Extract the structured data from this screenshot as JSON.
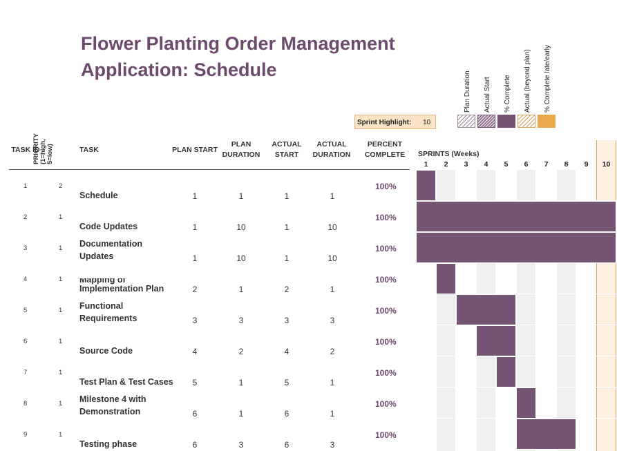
{
  "title": "Flower Planting Order Management Application: Schedule",
  "legend": {
    "items": [
      {
        "label": "Plan Duration"
      },
      {
        "label": "Actual Start"
      },
      {
        "label": "% Complete"
      },
      {
        "label": "Actual (beyond plan)"
      },
      {
        "label": "% Complete late/early"
      }
    ],
    "sprint_highlight_label": "Sprint Highlight:",
    "sprint_highlight_value": "10"
  },
  "colors": {
    "bar": "#745574",
    "title": "#6b4a6b",
    "highlight": "#fbe3c6",
    "column_shade": "#efefef"
  },
  "headers": {
    "task_id": "TASK ID",
    "priority": "PRIORITY (1=high, 5=low)",
    "priority_l1": "PRIORITY",
    "priority_l2": "(1=high,",
    "priority_l3": "5=low)",
    "task": "TASK",
    "plan_start": "PLAN START",
    "plan_duration_l1": "PLAN",
    "plan_duration_l2": "DURATION",
    "actual_start_l1": "ACTUAL",
    "actual_start_l2": "START",
    "actual_duration_l1": "ACTUAL",
    "actual_duration_l2": "DURATION",
    "percent_l1": "PERCENT",
    "percent_l2": "COMPLETE",
    "sprints": "SPRINTS (Weeks)"
  },
  "weeks": [
    "1",
    "2",
    "3",
    "4",
    "5",
    "6",
    "7",
    "8",
    "9",
    "10"
  ],
  "tasks": [
    {
      "id": "1",
      "priority": "2",
      "task": "Schedule",
      "plan_start": "1",
      "plan_duration": "1",
      "actual_start": "1",
      "actual_duration": "1",
      "percent": "100%"
    },
    {
      "id": "2",
      "priority": "1",
      "task": "Code Updates",
      "plan_start": "1",
      "plan_duration": "10",
      "actual_start": "1",
      "actual_duration": "10",
      "percent": "100%"
    },
    {
      "id": "3",
      "priority": "1",
      "task": "Documentation Updates",
      "task_l1": "Documentation",
      "task_l2": "Updates",
      "plan_start": "1",
      "plan_duration": "10",
      "actual_start": "1",
      "actual_duration": "10",
      "percent": "100%"
    },
    {
      "id": "4",
      "priority": "1",
      "task": "Implementation Plan",
      "plan_start": "2",
      "plan_duration": "1",
      "actual_start": "2",
      "actual_duration": "1",
      "percent": "100%"
    },
    {
      "id": "5",
      "priority": "1",
      "task": "Mapping of Functional Requirements",
      "task_l0": "Mapping of",
      "task_l1": "Functional",
      "task_l2": "Requirements",
      "plan_start": "3",
      "plan_duration": "3",
      "actual_start": "3",
      "actual_duration": "3",
      "percent": "100%"
    },
    {
      "id": "6",
      "priority": "1",
      "task": "Source Code",
      "plan_start": "4",
      "plan_duration": "2",
      "actual_start": "4",
      "actual_duration": "2",
      "percent": "100%"
    },
    {
      "id": "7",
      "priority": "1",
      "task": "Test Plan & Test Cases",
      "plan_start": "5",
      "plan_duration": "1",
      "actual_start": "5",
      "actual_duration": "1",
      "percent": "100%"
    },
    {
      "id": "8",
      "priority": "1",
      "task": "Milestone 4 with Demonstration",
      "task_l1": "Milestone 4 with",
      "task_l2": "Demonstration",
      "plan_start": "6",
      "plan_duration": "1",
      "actual_start": "6",
      "actual_duration": "1",
      "percent": "100%"
    },
    {
      "id": "9",
      "priority": "1",
      "task": "Testing phase",
      "plan_start": "6",
      "plan_duration": "3",
      "actual_start": "6",
      "actual_duration": "3",
      "percent": "100%"
    }
  ]
}
